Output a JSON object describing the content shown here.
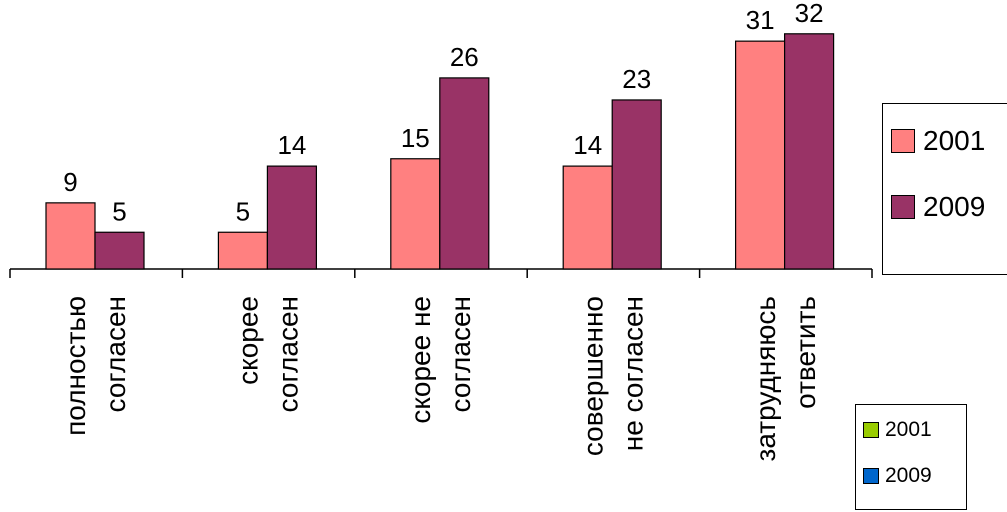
{
  "chart_data": {
    "type": "bar",
    "categories": [
      [
        "полностью",
        "согласен"
      ],
      [
        "скорее",
        "согласен"
      ],
      [
        "скорее не",
        "согласен"
      ],
      [
        "совершенно",
        "не согласен"
      ],
      [
        "затрудняюсь",
        "ответить"
      ]
    ],
    "series": [
      {
        "name": "2001",
        "values": [
          9,
          5,
          15,
          14,
          31
        ],
        "color": "#ff8080"
      },
      {
        "name": "2009",
        "values": [
          5,
          14,
          26,
          23,
          32
        ],
        "color": "#993366"
      }
    ],
    "ylim": [
      0,
      34
    ],
    "grid": false,
    "legend": "right"
  },
  "legend_small": {
    "items": [
      {
        "name": "2001",
        "color": "#99cc00"
      },
      {
        "name": "2009",
        "color": "#0066cc"
      }
    ]
  }
}
